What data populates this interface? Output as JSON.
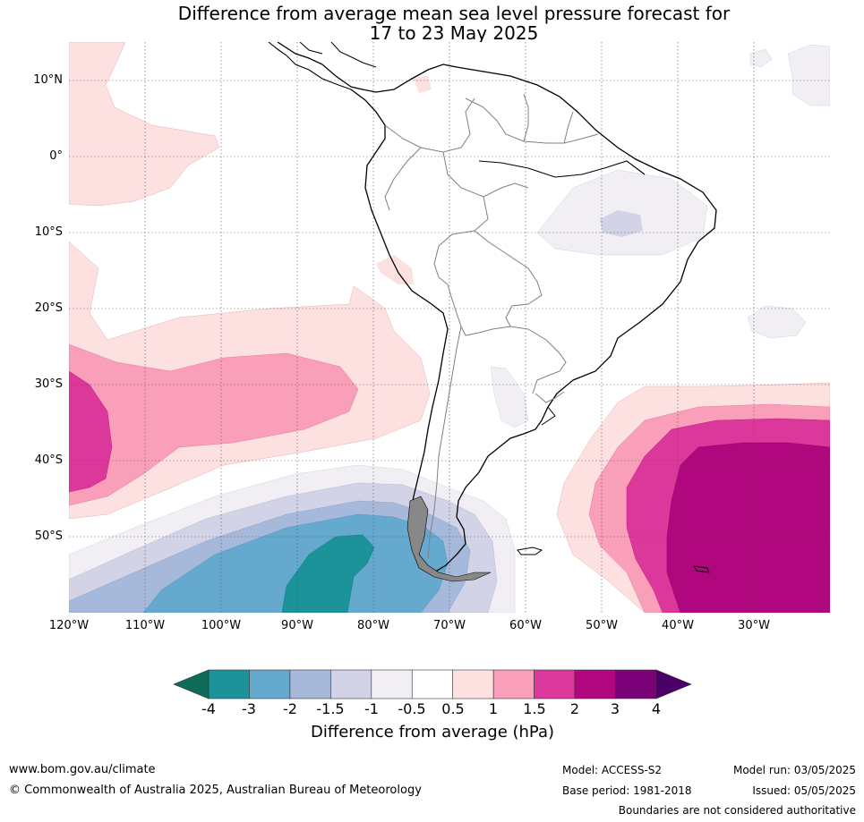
{
  "title_line1": "Difference from average mean sea level pressure forecast for",
  "title_line2": "17 to 23 May 2025",
  "lat_labels": [
    "10°N",
    "0°",
    "10°S",
    "20°S",
    "30°S",
    "40°S",
    "50°S"
  ],
  "lon_labels": [
    "120°W",
    "110°W",
    "100°W",
    "90°W",
    "80°W",
    "70°W",
    "60°W",
    "50°W",
    "40°W",
    "30°W"
  ],
  "colorbar": {
    "title": "Difference from average (hPa)",
    "ticks": [
      "-4",
      "-3",
      "-2",
      "-1.5",
      "-1",
      "-0.5",
      "0.5",
      "1",
      "1.5",
      "2",
      "3",
      "4"
    ],
    "colors": [
      "#1c9299",
      "#66a9ce",
      "#a7b9da",
      "#d2d3e6",
      "#f1eef4",
      "#ffffff",
      "#fde0e0",
      "#f99fba",
      "#dc379a",
      "#b0077f",
      "#7a0177"
    ],
    "under_color": "#0e6b5a",
    "over_color": "#4a0068"
  },
  "footer": {
    "website": "www.bom.gov.au/climate",
    "copyright": "© Commonwealth of Australia 2025, Australian Bureau of Meteorology",
    "model": "Model: ACCESS-S2",
    "base_period": "Base period: 1981-2018",
    "model_run": "Model run: 03/05/2025",
    "issued": "Issued: 05/05/2025",
    "disclaimer": "Boundaries are not considered authoritative"
  }
}
